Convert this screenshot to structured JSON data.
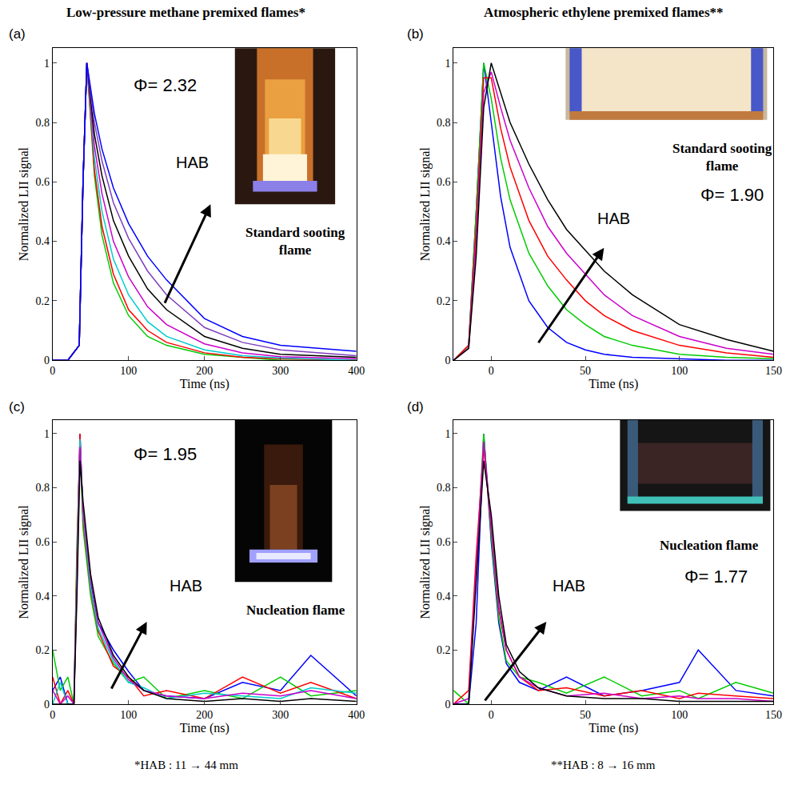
{
  "header": [
    "Low-pressure methane premixed flames*",
    "Atmospheric ethylene premixed flames**"
  ],
  "footnotes": [
    "*HAB : 11 → 44 mm",
    "**HAB : 8 → 16 mm"
  ],
  "chart_data": [
    {
      "type": "line",
      "title": "(a)",
      "x_label": "Time (ns)",
      "y_label": "Normalized LII signal",
      "annotations": {
        "phi": "Φ= 2.32",
        "arrow": "HAB",
        "inset": "Standard sooting flame"
      },
      "xlim": [
        0,
        400
      ],
      "xticks": [
        0,
        100,
        200,
        300,
        400
      ],
      "ylim": [
        0,
        1.05
      ],
      "yticks": [
        0,
        0.2,
        0.4,
        0.6,
        0.8,
        1
      ],
      "grid": false,
      "x": [
        0,
        20,
        35,
        40,
        45,
        55,
        65,
        80,
        100,
        125,
        150,
        200,
        250,
        300,
        400
      ],
      "series": [
        {
          "color": "#00cc00",
          "values": [
            0,
            0,
            0.05,
            0.6,
            1,
            0.62,
            0.42,
            0.26,
            0.15,
            0.08,
            0.05,
            0.02,
            0.01,
            0,
            0
          ]
        },
        {
          "color": "#ff0000",
          "values": [
            0,
            0,
            0.05,
            0.6,
            1,
            0.64,
            0.45,
            0.29,
            0.17,
            0.1,
            0.06,
            0.025,
            0.01,
            0.005,
            0
          ]
        },
        {
          "color": "#00cccc",
          "values": [
            0,
            0,
            0.05,
            0.6,
            1,
            0.68,
            0.5,
            0.34,
            0.22,
            0.13,
            0.08,
            0.035,
            0.015,
            0.008,
            0
          ]
        },
        {
          "color": "#cc00cc",
          "values": [
            0,
            0,
            0.05,
            0.6,
            1,
            0.72,
            0.56,
            0.4,
            0.28,
            0.18,
            0.12,
            0.055,
            0.025,
            0.012,
            0.005
          ]
        },
        {
          "color": "#000000",
          "values": [
            0,
            0,
            0.05,
            0.6,
            1,
            0.76,
            0.62,
            0.47,
            0.35,
            0.24,
            0.17,
            0.08,
            0.04,
            0.02,
            0.01
          ]
        },
        {
          "color": "#7f3fbf",
          "values": [
            0,
            0,
            0.05,
            0.6,
            1,
            0.8,
            0.67,
            0.53,
            0.41,
            0.3,
            0.22,
            0.11,
            0.06,
            0.035,
            0.015
          ]
        },
        {
          "color": "#0000ff",
          "values": [
            0,
            0,
            0.05,
            0.6,
            1,
            0.83,
            0.71,
            0.58,
            0.46,
            0.35,
            0.27,
            0.14,
            0.08,
            0.05,
            0.03
          ]
        }
      ]
    },
    {
      "type": "line",
      "title": "(b)",
      "x_label": "Time (ns)",
      "y_label": "Normalized LII signal",
      "annotations": {
        "phi": "Φ= 1.90",
        "arrow": "HAB",
        "inset": "Standard sooting flame"
      },
      "xlim": [
        -20,
        150
      ],
      "xticks": [
        0,
        50,
        100,
        150
      ],
      "ylim": [
        0,
        1.05
      ],
      "yticks": [
        0,
        0.2,
        0.4,
        0.6,
        0.8,
        1
      ],
      "grid": false,
      "x": [
        -20,
        -12,
        -8,
        -4,
        0,
        5,
        10,
        20,
        30,
        40,
        50,
        60,
        75,
        100,
        125,
        150
      ],
      "series": [
        {
          "color": "#0000ff",
          "values": [
            0,
            0.05,
            0.5,
            1,
            0.8,
            0.55,
            0.38,
            0.2,
            0.11,
            0.06,
            0.035,
            0.02,
            0.01,
            0.005,
            0,
            0
          ]
        },
        {
          "color": "#00cc00",
          "values": [
            0,
            0.05,
            0.5,
            1,
            0.88,
            0.68,
            0.54,
            0.36,
            0.25,
            0.17,
            0.12,
            0.08,
            0.05,
            0.02,
            0.01,
            0.005
          ]
        },
        {
          "color": "#ff0000",
          "values": [
            0,
            0.05,
            0.45,
            0.95,
            0.95,
            0.78,
            0.65,
            0.47,
            0.35,
            0.27,
            0.2,
            0.15,
            0.1,
            0.05,
            0.025,
            0.01
          ]
        },
        {
          "color": "#cc00cc",
          "values": [
            0,
            0.04,
            0.4,
            0.9,
            0.97,
            0.85,
            0.74,
            0.58,
            0.45,
            0.36,
            0.29,
            0.22,
            0.15,
            0.08,
            0.04,
            0.02
          ]
        },
        {
          "color": "#000000",
          "values": [
            0,
            0.04,
            0.35,
            0.85,
            1,
            0.9,
            0.8,
            0.66,
            0.54,
            0.44,
            0.37,
            0.3,
            0.22,
            0.12,
            0.07,
            0.03
          ]
        }
      ]
    },
    {
      "type": "line",
      "title": "(c)",
      "x_label": "Time (ns)",
      "y_label": "Normalized LII signal",
      "annotations": {
        "phi": "Φ= 1.95",
        "arrow": "HAB",
        "inset": "Nucleation flame"
      },
      "xlim": [
        0,
        400
      ],
      "xticks": [
        0,
        100,
        200,
        300,
        400
      ],
      "ylim": [
        0,
        1.05
      ],
      "yticks": [
        0,
        0.2,
        0.4,
        0.6,
        0.8,
        1
      ],
      "grid": false,
      "x": [
        0,
        10,
        20,
        28,
        32,
        36,
        40,
        50,
        60,
        80,
        100,
        120,
        150,
        200,
        250,
        300,
        340,
        400
      ],
      "series": [
        {
          "color": "#0000ff",
          "values": [
            0.05,
            0.1,
            0,
            0,
            0.5,
            1,
            0.7,
            0.45,
            0.3,
            0.2,
            0.12,
            0.05,
            0.03,
            0.02,
            0.08,
            0.05,
            0.18,
            0.03
          ]
        },
        {
          "color": "#00cc00",
          "values": [
            0.2,
            0.05,
            0.1,
            0,
            0.6,
            0.95,
            0.65,
            0.4,
            0.25,
            0.15,
            0.08,
            0.1,
            0.02,
            0.05,
            0.02,
            0.1,
            0.03,
            0.05
          ]
        },
        {
          "color": "#ff0000",
          "values": [
            0.1,
            0,
            0.05,
            0,
            0.55,
            1,
            0.68,
            0.42,
            0.27,
            0.14,
            0.1,
            0.03,
            0.05,
            0.02,
            0.1,
            0.04,
            0.08,
            0.02
          ]
        },
        {
          "color": "#00cccc",
          "values": [
            0,
            0.08,
            0,
            0,
            0.5,
            0.98,
            0.7,
            0.43,
            0.28,
            0.16,
            0.08,
            0.06,
            0.02,
            0.04,
            0.03,
            0.02,
            0.06,
            0.04
          ]
        },
        {
          "color": "#cc00cc",
          "values": [
            0.05,
            0,
            0.03,
            0,
            0.45,
            0.95,
            0.72,
            0.46,
            0.3,
            0.17,
            0.09,
            0.05,
            0.03,
            0.02,
            0.04,
            0.03,
            0.05,
            0.02
          ]
        },
        {
          "color": "#000000",
          "values": [
            0,
            0,
            0,
            0,
            0.4,
            0.9,
            0.75,
            0.48,
            0.32,
            0.18,
            0.1,
            0.05,
            0.02,
            0.01,
            0.02,
            0.01,
            0.02,
            0.01
          ]
        }
      ]
    },
    {
      "type": "line",
      "title": "(d)",
      "x_label": "Time (ns)",
      "y_label": "Normalized LII signal",
      "annotations": {
        "phi": "Φ= 1.77",
        "arrow": "HAB",
        "inset": "Nucleation flame"
      },
      "xlim": [
        -20,
        150
      ],
      "xticks": [
        0,
        50,
        100,
        150
      ],
      "ylim": [
        0,
        1.05
      ],
      "yticks": [
        0,
        0.2,
        0.4,
        0.6,
        0.8,
        1
      ],
      "grid": false,
      "x": [
        -20,
        -12,
        -8,
        -4,
        0,
        4,
        8,
        15,
        25,
        40,
        60,
        80,
        100,
        110,
        130,
        150
      ],
      "series": [
        {
          "color": "#0000ff",
          "values": [
            0,
            0,
            0.3,
            1,
            0.6,
            0.3,
            0.15,
            0.08,
            0.05,
            0.1,
            0.03,
            0.05,
            0.08,
            0.2,
            0.05,
            0.03
          ]
        },
        {
          "color": "#00cc00",
          "values": [
            0.05,
            0,
            0.5,
            1,
            0.62,
            0.32,
            0.16,
            0.1,
            0.08,
            0.04,
            0.1,
            0.03,
            0.05,
            0.02,
            0.08,
            0.04
          ]
        },
        {
          "color": "#ff0000",
          "values": [
            0,
            0.05,
            0.55,
            0.95,
            0.65,
            0.35,
            0.2,
            0.1,
            0.05,
            0.06,
            0.03,
            0.05,
            0.02,
            0.04,
            0.03,
            0.02
          ]
        },
        {
          "color": "#cc00cc",
          "values": [
            0,
            0.02,
            0.5,
            0.97,
            0.66,
            0.36,
            0.2,
            0.1,
            0.06,
            0.03,
            0.04,
            0.02,
            0.03,
            0.02,
            0.02,
            0.01
          ]
        },
        {
          "color": "#000000",
          "values": [
            0,
            0,
            0.45,
            0.9,
            0.7,
            0.4,
            0.22,
            0.12,
            0.06,
            0.03,
            0.02,
            0.02,
            0.01,
            0.01,
            0.01,
            0.01
          ]
        }
      ]
    }
  ]
}
